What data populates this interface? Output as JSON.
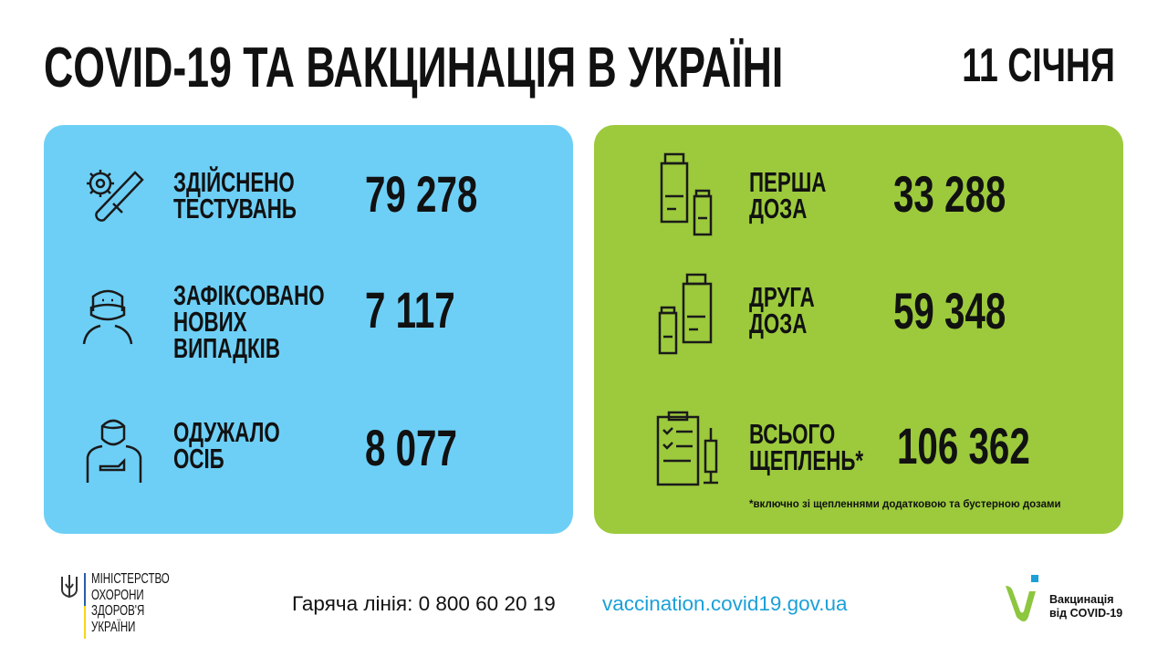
{
  "header": {
    "title": "COVID-19 ТА ВАКЦИНАЦІЯ В УКРАЇНІ",
    "date": "11 СІЧНЯ"
  },
  "covid": {
    "items": [
      {
        "icon": "test-tube-virus-icon",
        "label_lines": [
          "ЗДІЙСНЕНО",
          "ТЕСТУВАНЬ"
        ],
        "value": "79 278"
      },
      {
        "icon": "masked-person-icon",
        "label_lines": [
          "ЗАФІКСОВАНО",
          "НОВИХ",
          "ВИПАДКІВ"
        ],
        "value": "7 117"
      },
      {
        "icon": "recovered-person-icon",
        "label_lines": [
          "ОДУЖАЛО",
          "ОСІБ"
        ],
        "value": "8 077"
      }
    ]
  },
  "vaccination": {
    "items": [
      {
        "icon": "vaccine-vials-icon",
        "label_lines": [
          "ПЕРША",
          "ДОЗА"
        ],
        "value": "33 288"
      },
      {
        "icon": "vaccine-vials-icon",
        "label_lines": [
          "ДРУГА",
          "ДОЗА"
        ],
        "value": "59 348"
      },
      {
        "icon": "clipboard-syringe-icon",
        "label_lines": [
          "ВСЬОГО",
          "ЩЕПЛЕНЬ*"
        ],
        "value": "106 362"
      }
    ],
    "footnote": "*включно зі щепленнями додатковою та бустерною дозами"
  },
  "footer": {
    "ministry_lines": [
      "МІНІСТЕРСТВО",
      "ОХОРОНИ",
      "ЗДОРОВ'Я",
      "УКРАЇНИ"
    ],
    "hotline": "Гаряча лінія: 0 800 60 20 19",
    "website": "vaccination.covid19.gov.ua",
    "vaccination_logo_lines": [
      "Вакцинація",
      "від COVID-19"
    ]
  },
  "colors": {
    "blue_panel": "#6dcff6",
    "green_panel": "#9cca3c",
    "link": "#1ba0d8",
    "logo_green": "#8dc63f",
    "logo_blue": "#1ba0d8"
  }
}
